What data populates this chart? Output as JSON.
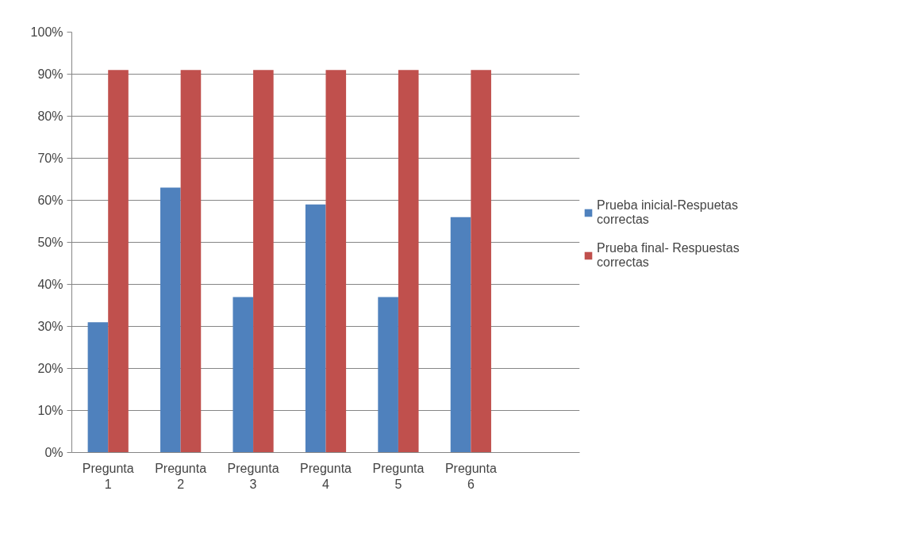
{
  "chart_data": {
    "type": "bar",
    "categories": [
      "Pregunta 1",
      "Pregunta 2",
      "Pregunta 3",
      "Pregunta 4",
      "Pregunta 5",
      "Pregunta 6",
      null
    ],
    "series": [
      {
        "name": "Prueba inicial-Respuetas correctas",
        "color": "#4f81bd",
        "values": [
          31,
          63,
          37,
          59,
          37,
          56,
          null
        ]
      },
      {
        "name": "Prueba final- Respuestas correctas",
        "color": "#c0504d",
        "values": [
          91,
          91,
          91,
          91,
          91,
          91,
          null
        ]
      }
    ],
    "ylim": [
      0,
      100
    ],
    "yticks": [
      {
        "value": 0,
        "label": "0%"
      },
      {
        "value": 10,
        "label": "10%"
      },
      {
        "value": 20,
        "label": "20%"
      },
      {
        "value": 30,
        "label": "30%"
      },
      {
        "value": 40,
        "label": "40%"
      },
      {
        "value": 50,
        "label": "50%"
      },
      {
        "value": 60,
        "label": "60%"
      },
      {
        "value": 70,
        "label": "70%"
      },
      {
        "value": 80,
        "label": "80%"
      },
      {
        "value": 90,
        "label": "90%"
      },
      {
        "value": 100,
        "label": "100%"
      }
    ],
    "grid": "y",
    "legend": "right"
  }
}
